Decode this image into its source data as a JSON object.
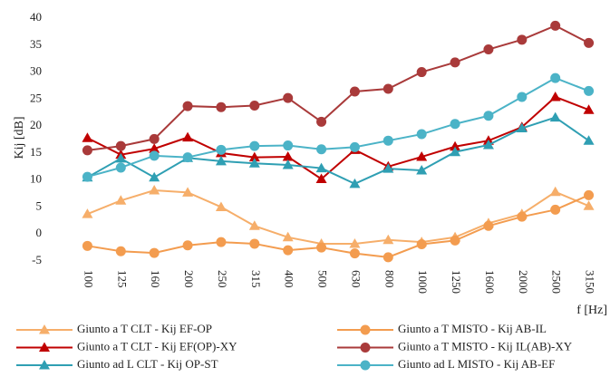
{
  "chart_data": {
    "type": "line",
    "y_label": "Kij [dB]",
    "x_label": "f [Hz]",
    "categories": [
      "100",
      "125",
      "160",
      "200",
      "250",
      "315",
      "400",
      "500",
      "630",
      "800",
      "1000",
      "1250",
      "1600",
      "2000",
      "2500",
      "3150"
    ],
    "ylim": [
      -5,
      40
    ],
    "yticks": [
      -5,
      0,
      5,
      10,
      15,
      20,
      25,
      30,
      35,
      40
    ],
    "series": [
      {
        "name": "Giunto a T CLT - Kij EF-OP",
        "color": "#f6ae6a",
        "marker": "triangle",
        "values": [
          3.7,
          6.2,
          8.1,
          7.7,
          5.0,
          1.5,
          -0.6,
          -1.8,
          -1.8,
          -1.1,
          -1.5,
          -0.6,
          2.0,
          3.7,
          7.8,
          5.2
        ]
      },
      {
        "name": "Giunto a T MISTO - Kij AB-IL",
        "color": "#f39c4f",
        "marker": "circle",
        "values": [
          -2.2,
          -3.2,
          -3.5,
          -2.1,
          -1.5,
          -1.8,
          -3.0,
          -2.5,
          -3.6,
          -4.3,
          -1.9,
          -1.2,
          1.5,
          3.2,
          4.5,
          7.2
        ]
      },
      {
        "name": "Giunto a T CLT - Kij EF(OP)-XY",
        "color": "#c00000",
        "marker": "triangle",
        "values": [
          17.8,
          14.7,
          15.8,
          17.9,
          15.0,
          14.2,
          14.3,
          10.2,
          15.6,
          12.5,
          14.3,
          16.2,
          17.3,
          19.8,
          25.4,
          23.0
        ]
      },
      {
        "name": "Giunto a T MISTO - Kij IL(AB)-XY",
        "color": "#a93a3a",
        "marker": "circle",
        "values": [
          15.5,
          16.3,
          17.6,
          23.7,
          23.5,
          23.8,
          25.2,
          20.8,
          26.4,
          26.9,
          30.0,
          31.8,
          34.2,
          36.0,
          38.6,
          35.4
        ]
      },
      {
        "name": "Giunto ad L CLT - Kij OP-ST",
        "color": "#2f9fb3",
        "marker": "triangle",
        "values": [
          10.5,
          14.0,
          10.5,
          14.1,
          13.5,
          13.1,
          12.8,
          12.2,
          9.3,
          12.1,
          11.8,
          15.2,
          16.5,
          19.6,
          21.6,
          17.3
        ]
      },
      {
        "name": "Giunto ad L MISTO - Kij AB-EF",
        "color": "#4bb3c7",
        "marker": "circle",
        "values": [
          10.6,
          12.3,
          14.5,
          14.2,
          15.6,
          16.3,
          16.4,
          15.7,
          16.1,
          17.3,
          18.5,
          20.4,
          21.9,
          25.4,
          28.9,
          26.5
        ]
      }
    ]
  }
}
